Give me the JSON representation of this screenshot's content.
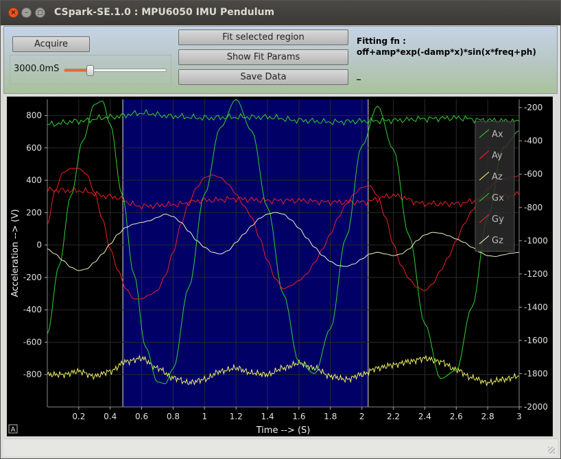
{
  "window": {
    "title": "CSpark-SE.1.0 : MPU6050 IMU Pendulum",
    "close_glyph": "×",
    "minimize_glyph": "–",
    "maximize_glyph": "□"
  },
  "toolbar": {
    "acquire_label": "Acquire",
    "duration_label": "3000.0mS",
    "duration_level": 0.25,
    "fit_region_label": "Fit selected region",
    "show_params_label": "Show Fit Params",
    "save_label": "Save Data",
    "fit_fn_label": "Fitting fn :",
    "fit_fn_formula": "off+amp*exp(-damp*x)*sin(x*freq+ph)",
    "fit_result": "_"
  },
  "icons": {
    "autoscale": "autoscale-icon"
  },
  "plot": {
    "autoscale_glyph": "A",
    "selection_region": [
      0.48,
      2.04
    ],
    "selection_color": "#000066",
    "background_color": "#000000"
  },
  "chart_data": {
    "type": "line",
    "xlabel": "Time --> (S)",
    "ylabel": "Acceleration --> (V)",
    "x_range": [
      0.0,
      3.0
    ],
    "y_left_range": [
      -1000,
      900
    ],
    "y_right_range": [
      -2000,
      -150
    ],
    "x_ticks": [
      "0.2",
      "0.4",
      "0.6",
      "0.8",
      "1",
      "1.2",
      "1.4",
      "1.6",
      "1.8",
      "2",
      "2.2",
      "2.4",
      "2.6",
      "2.8",
      "3"
    ],
    "x_tick_values": [
      0.2,
      0.4,
      0.6,
      0.8,
      1.0,
      1.2,
      1.4,
      1.6,
      1.8,
      2.0,
      2.2,
      2.4,
      2.6,
      2.8,
      3.0
    ],
    "y_left_ticks": [
      "800",
      "600",
      "400",
      "200",
      "0",
      "-200",
      "-400",
      "-600",
      "-800"
    ],
    "y_left_tick_values": [
      800,
      600,
      400,
      200,
      0,
      -200,
      -400,
      -600,
      -800
    ],
    "y_right_ticks": [
      "-200",
      "-400",
      "-600",
      "-800",
      "-1000",
      "-1200",
      "-1400",
      "-1600",
      "-1800",
      "-2000"
    ],
    "y_right_tick_values": [
      -200,
      -400,
      -600,
      -800,
      -1000,
      -1200,
      -1400,
      -1600,
      -1800,
      -2000
    ],
    "grid": true,
    "legend_position": "top-right",
    "series": [
      {
        "name": "Ax",
        "color": "#33dd33",
        "axis": "left",
        "x": [
          0.0,
          0.2,
          0.4,
          0.6,
          0.8,
          1.0,
          1.2,
          1.4,
          1.6,
          1.8,
          2.0,
          2.2,
          2.4,
          2.6,
          2.8,
          3.0
        ],
        "y": [
          745,
          765,
          790,
          815,
          795,
          785,
          790,
          790,
          770,
          760,
          765,
          770,
          780,
          785,
          770,
          765
        ]
      },
      {
        "name": "Ay",
        "color": "#ff2222",
        "axis": "left",
        "x": [
          0.0,
          0.2,
          0.4,
          0.6,
          0.8,
          1.0,
          1.2,
          1.4,
          1.6,
          1.8,
          2.0,
          2.2,
          2.4,
          2.6,
          2.8,
          3.0
        ],
        "y": [
          340,
          335,
          300,
          240,
          250,
          275,
          285,
          275,
          275,
          265,
          265,
          305,
          255,
          255,
          290,
          310
        ]
      },
      {
        "name": "Az",
        "color": "#ffff66",
        "axis": "left",
        "x": [
          0.0,
          0.1,
          0.2,
          0.3,
          0.4,
          0.5,
          0.6,
          0.7,
          0.8,
          0.9,
          1.0,
          1.1,
          1.2,
          1.3,
          1.4,
          1.5,
          1.6,
          1.7,
          1.8,
          1.9,
          2.0,
          2.1,
          2.2,
          2.3,
          2.4,
          2.5,
          2.6,
          2.7,
          2.8,
          2.9,
          3.0
        ],
        "y": [
          -800,
          -800,
          -780,
          -810,
          -780,
          -720,
          -700,
          -760,
          -820,
          -850,
          -830,
          -780,
          -760,
          -790,
          -800,
          -760,
          -730,
          -760,
          -810,
          -830,
          -800,
          -760,
          -740,
          -720,
          -700,
          -720,
          -770,
          -820,
          -850,
          -830,
          -810
        ]
      },
      {
        "name": "Gx",
        "color": "#33dd33",
        "axis": "right",
        "x": [
          0.0,
          0.075,
          0.15,
          0.225,
          0.3,
          0.35,
          0.4,
          0.475,
          0.55,
          0.625,
          0.7,
          0.75,
          0.8,
          0.9,
          1.0,
          1.1,
          1.2,
          1.3,
          1.4,
          1.5,
          1.6,
          1.7,
          1.8,
          1.9,
          2.0,
          2.1,
          2.2,
          2.3,
          2.4,
          2.5,
          2.6,
          2.7,
          2.8,
          2.9,
          3.0
        ],
        "y": [
          -1560,
          -1150,
          -730,
          -400,
          -180,
          -160,
          -300,
          -720,
          -1200,
          -1640,
          -1850,
          -1860,
          -1770,
          -1280,
          -720,
          -320,
          -150,
          -340,
          -800,
          -1320,
          -1730,
          -1800,
          -1530,
          -980,
          -430,
          -190,
          -450,
          -970,
          -1500,
          -1830,
          -1780,
          -1400,
          -860,
          -440,
          -340
        ]
      },
      {
        "name": "Gy",
        "color": "#ff2222",
        "axis": "right",
        "x": [
          0.0,
          0.05,
          0.1,
          0.15,
          0.2,
          0.25,
          0.3,
          0.35,
          0.4,
          0.45,
          0.5,
          0.55,
          0.6,
          0.65,
          0.7,
          0.75,
          0.8,
          0.85,
          0.9,
          0.95,
          1.0,
          1.05,
          1.1,
          1.15,
          1.2,
          1.25,
          1.3,
          1.35,
          1.4,
          1.45,
          1.5,
          1.55,
          1.6,
          1.65,
          1.7,
          1.75,
          1.8,
          1.85,
          1.9,
          1.95,
          2.0,
          2.05,
          2.1,
          2.15,
          2.2,
          2.25,
          2.3,
          2.35,
          2.4,
          2.45,
          2.5,
          2.55,
          2.6,
          2.65,
          2.7,
          2.75,
          2.8,
          2.85,
          2.9,
          2.95,
          3.0
        ],
        "y": [
          -900,
          -700,
          -590,
          -565,
          -565,
          -600,
          -710,
          -870,
          -1050,
          -1180,
          -1290,
          -1350,
          -1350,
          -1325,
          -1300,
          -1210,
          -1070,
          -900,
          -770,
          -680,
          -620,
          -605,
          -620,
          -660,
          -720,
          -790,
          -860,
          -985,
          -1120,
          -1230,
          -1290,
          -1270,
          -1240,
          -1200,
          -1130,
          -1050,
          -960,
          -860,
          -780,
          -720,
          -680,
          -670,
          -730,
          -860,
          -1020,
          -1150,
          -1230,
          -1280,
          -1300,
          -1260,
          -1180,
          -1100,
          -1000,
          -900,
          -820,
          -750,
          -690,
          -650,
          -630,
          -620,
          -610
        ]
      },
      {
        "name": "Gz",
        "color": "#ffffcc",
        "axis": "right",
        "x": [
          0.0,
          0.05,
          0.1,
          0.15,
          0.2,
          0.25,
          0.3,
          0.35,
          0.4,
          0.45,
          0.5,
          0.55,
          0.6,
          0.65,
          0.7,
          0.75,
          0.8,
          0.85,
          0.9,
          0.95,
          1.0,
          1.05,
          1.1,
          1.15,
          1.2,
          1.25,
          1.3,
          1.35,
          1.4,
          1.45,
          1.5,
          1.55,
          1.6,
          1.65,
          1.7,
          1.75,
          1.8,
          1.85,
          1.9,
          1.95,
          2.0,
          2.05,
          2.1,
          2.15,
          2.2,
          2.25,
          2.3,
          2.35,
          2.4,
          2.45,
          2.5,
          2.55,
          2.6,
          2.65,
          2.7,
          2.75,
          2.8,
          2.85,
          2.9,
          2.95,
          3.0
        ],
        "y": [
          -1050,
          -1080,
          -1120,
          -1160,
          -1180,
          -1170,
          -1130,
          -1080,
          -1020,
          -960,
          -920,
          -900,
          -890,
          -880,
          -860,
          -840,
          -855,
          -890,
          -945,
          -1000,
          -1040,
          -1070,
          -1080,
          -1060,
          -1010,
          -960,
          -910,
          -865,
          -840,
          -830,
          -840,
          -875,
          -925,
          -985,
          -1040,
          -1090,
          -1125,
          -1150,
          -1155,
          -1140,
          -1110,
          -1080,
          -1070,
          -1080,
          -1090,
          -1080,
          -1050,
          -1000,
          -965,
          -950,
          -955,
          -970,
          -990,
          -1010,
          -1040,
          -1070,
          -1090,
          -1095,
          -1085,
          -1075,
          -1070
        ]
      }
    ]
  }
}
